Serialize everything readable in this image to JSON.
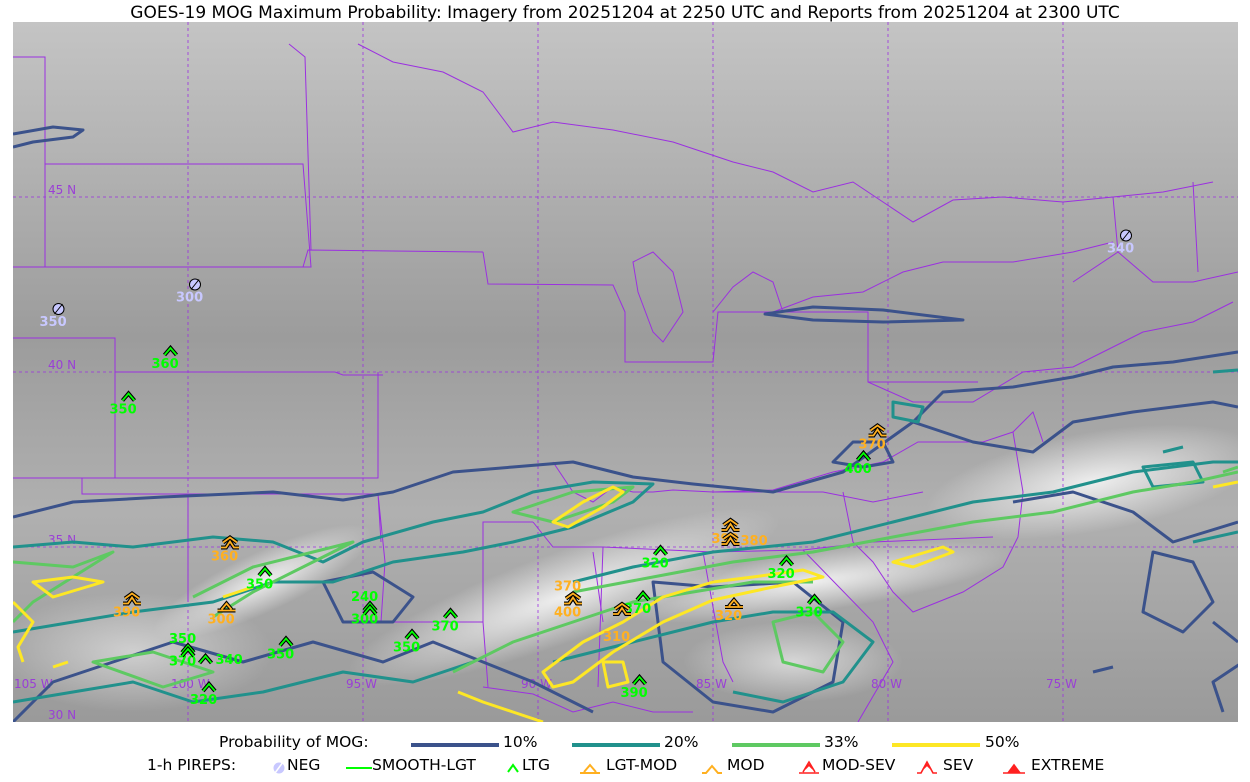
{
  "title": "GOES-19 MOG Maximum Probability: Imagery from 20251204 at 2250 UTC and Reports from 20251204 at 2300 UTC",
  "map": {
    "grid_labels": {
      "lat": [
        "45 N",
        "40 N",
        "35 N",
        "30 N"
      ],
      "lon": [
        "105 W",
        "100 W",
        "95 W",
        "90 W",
        "85 W",
        "80 W",
        "75 W"
      ]
    },
    "colors": {
      "boundaries": "#9b30e0",
      "grid": "#9b30e0",
      "p10": "#3b528b",
      "p20": "#21918c",
      "p33": "#5ec962",
      "p50": "#fde725",
      "neg": "#c8c8ff",
      "ltg": "#00ff00",
      "mod": "#ffb020"
    },
    "reports": [
      {
        "type": "NEG",
        "lat": 41.8,
        "lon": -103.7,
        "alt": "350"
      },
      {
        "type": "NEG",
        "lat": 42.5,
        "lon": -99.8,
        "alt": "300"
      },
      {
        "type": "NEG",
        "lat": 43.9,
        "lon": -73.2,
        "alt": "340"
      },
      {
        "type": "LTG",
        "lat": 40.6,
        "lon": -100.5,
        "alt": "360"
      },
      {
        "type": "LTG",
        "lat": 39.3,
        "lon": -101.7,
        "alt": "350"
      },
      {
        "type": "LTG",
        "lat": 34.3,
        "lon": -97.8,
        "alt": "350"
      },
      {
        "type": "LTG",
        "lat": 32.1,
        "lon": -100.0,
        "alt": "370"
      },
      {
        "type": "LTG",
        "lat": 32.0,
        "lon": -100.0,
        "alt": "350"
      },
      {
        "type": "LTG",
        "lat": 31.8,
        "lon": -99.5,
        "alt": "340"
      },
      {
        "type": "LTG",
        "lat": 31.0,
        "lon": -99.4,
        "alt": "320"
      },
      {
        "type": "LTG",
        "lat": 32.3,
        "lon": -97.2,
        "alt": "350"
      },
      {
        "type": "LTG",
        "lat": 33.3,
        "lon": -94.8,
        "alt": "300"
      },
      {
        "type": "LTG",
        "lat": 33.2,
        "lon": -94.8,
        "alt": "240"
      },
      {
        "type": "LTG",
        "lat": 32.5,
        "lon": -93.6,
        "alt": "350"
      },
      {
        "type": "LTG",
        "lat": 33.1,
        "lon": -92.5,
        "alt": "370"
      },
      {
        "type": "LTG",
        "lat": 34.9,
        "lon": -86.5,
        "alt": "320"
      },
      {
        "type": "LTG",
        "lat": 33.6,
        "lon": -87.0,
        "alt": "370"
      },
      {
        "type": "LTG",
        "lat": 31.2,
        "lon": -87.1,
        "alt": "390"
      },
      {
        "type": "LTG",
        "lat": 34.6,
        "lon": -82.9,
        "alt": "320"
      },
      {
        "type": "LTG",
        "lat": 33.5,
        "lon": -82.1,
        "alt": "330"
      },
      {
        "type": "LTG",
        "lat": 37.6,
        "lon": -80.7,
        "alt": "400"
      },
      {
        "type": "MOD",
        "lat": 35.1,
        "lon": -98.8,
        "alt": "360"
      },
      {
        "type": "MOD",
        "lat": 33.5,
        "lon": -101.6,
        "alt": "390"
      },
      {
        "type": "LGT-MOD",
        "lat": 33.3,
        "lon": -98.9,
        "alt": "300"
      },
      {
        "type": "MOD",
        "lat": 33.5,
        "lon": -89.0,
        "alt": "400"
      },
      {
        "type": "MOD",
        "lat": 33.5,
        "lon": -89.0,
        "alt": "370"
      },
      {
        "type": "MOD",
        "lat": 33.2,
        "lon": -87.6,
        "alt": "310"
      },
      {
        "type": "MOD",
        "lat": 35.6,
        "lon": -84.5,
        "alt": "390"
      },
      {
        "type": "MOD",
        "lat": 35.2,
        "lon": -84.5,
        "alt": "380"
      },
      {
        "type": "LGT-MOD",
        "lat": 33.4,
        "lon": -84.4,
        "alt": "320"
      },
      {
        "type": "MOD",
        "lat": 38.3,
        "lon": -80.3,
        "alt": "370"
      }
    ]
  },
  "legend": {
    "prob_label": "Probability of MOG:",
    "prob_items": [
      {
        "label": "10%",
        "color": "#3b528b"
      },
      {
        "label": "20%",
        "color": "#21918c"
      },
      {
        "label": "33%",
        "color": "#5ec962"
      },
      {
        "label": "50%",
        "color": "#fde725"
      }
    ],
    "pirep_label": "1-h PIREPS:",
    "pirep_items": [
      {
        "label": "NEG",
        "icon": "neg-circle",
        "color": "#c8c8ff"
      },
      {
        "label": "SMOOTH-LGT",
        "icon": "line",
        "color": "#00ff00"
      },
      {
        "label": "LTG",
        "icon": "chevron",
        "color": "#00ff00"
      },
      {
        "label": "LGT-MOD",
        "icon": "chevron-bar",
        "color": "#ffb020"
      },
      {
        "label": "MOD",
        "icon": "chevron",
        "color": "#ffb020"
      },
      {
        "label": "MOD-SEV",
        "icon": "double-chevron-bar",
        "color": "#ff2020"
      },
      {
        "label": "SEV",
        "icon": "double-chevron",
        "color": "#ff2020"
      },
      {
        "label": "EXTREME",
        "icon": "triangle",
        "color": "#ff2020"
      }
    ]
  }
}
